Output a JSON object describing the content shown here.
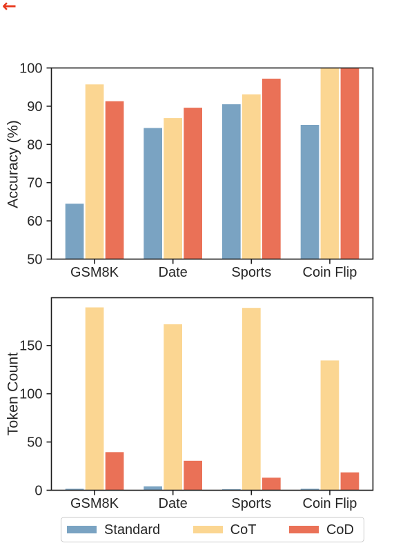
{
  "annotation": {
    "arrow_glyph": "←",
    "arrow_color": "#e8391d"
  },
  "ui_colors": {
    "text": "#262626",
    "spine": "#1b1b1b",
    "legend_border": "#c9c9c9",
    "background": "#ffffff"
  },
  "legend": {
    "items": [
      {
        "label": "Standard",
        "color": "#7AA3C2"
      },
      {
        "label": "CoT",
        "color": "#FBD692"
      },
      {
        "label": "CoD",
        "color": "#EA7157"
      }
    ]
  },
  "chart_data": [
    {
      "type": "bar",
      "title": "",
      "xlabel": "",
      "ylabel": "Accuracy (%)",
      "categories": [
        "GSM8K",
        "Date",
        "Sports",
        "Coin Flip"
      ],
      "series": [
        {
          "name": "Standard",
          "values": [
            64.5,
            84.3,
            90.5,
            85.1
          ]
        },
        {
          "name": "CoT",
          "values": [
            95.7,
            86.9,
            93.1,
            100
          ]
        },
        {
          "name": "CoD",
          "values": [
            91.3,
            89.6,
            97.2,
            100
          ]
        }
      ],
      "ylim": [
        50,
        100
      ],
      "yticks": [
        50,
        60,
        70,
        80,
        90,
        100
      ],
      "grid": false,
      "legend_position": "none"
    },
    {
      "type": "bar",
      "title": "",
      "xlabel": "",
      "ylabel": "Token Count",
      "categories": [
        "GSM8K",
        "Date",
        "Sports",
        "Coin Flip"
      ],
      "series": [
        {
          "name": "Standard",
          "values": [
            1.5,
            4,
            1,
            1.5
          ]
        },
        {
          "name": "CoT",
          "values": [
            189.5,
            172,
            189,
            134.5
          ]
        },
        {
          "name": "CoD",
          "values": [
            39.5,
            30.5,
            13,
            18.5
          ]
        }
      ],
      "ylim": [
        0,
        199.5
      ],
      "yticks": [
        0,
        50,
        100,
        150
      ],
      "grid": false,
      "legend_position": "bottom"
    }
  ]
}
